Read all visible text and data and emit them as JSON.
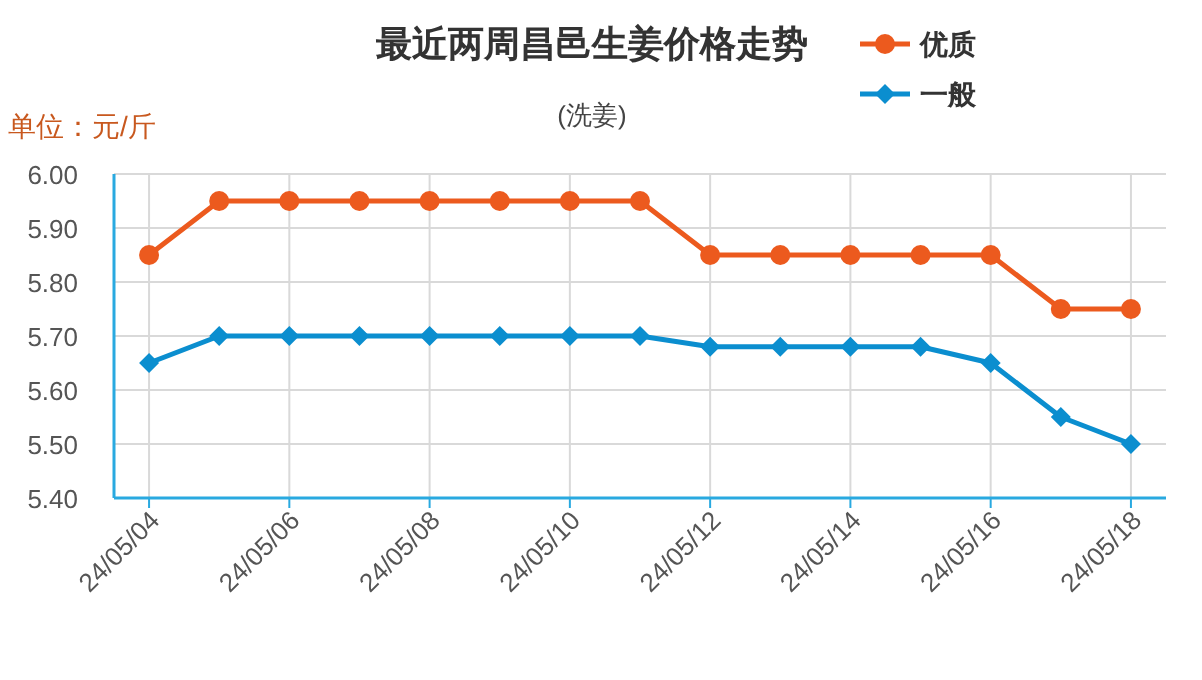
{
  "chart_data": {
    "type": "line",
    "title": "最近两周昌邑生姜价格走势",
    "subtitle": "(洗姜)",
    "ylabel": "单位：元/斤",
    "categories": [
      "24/05/04",
      null,
      "24/05/06",
      null,
      "24/05/08",
      null,
      "24/05/10",
      null,
      "24/05/12",
      null,
      "24/05/14",
      null,
      "24/05/16",
      null,
      "24/05/18"
    ],
    "series": [
      {
        "name": "优质",
        "color": "#ec5a1e",
        "marker": "circle",
        "values": [
          5.85,
          5.95,
          5.95,
          5.95,
          5.95,
          5.95,
          5.95,
          5.95,
          5.85,
          5.85,
          5.85,
          5.85,
          5.85,
          5.75,
          5.75
        ]
      },
      {
        "name": "一般",
        "color": "#0b8ecf",
        "marker": "diamond",
        "values": [
          5.65,
          5.7,
          5.7,
          5.7,
          5.7,
          5.7,
          5.7,
          5.7,
          5.68,
          5.68,
          5.68,
          5.68,
          5.65,
          5.55,
          5.5
        ]
      }
    ],
    "ylim": [
      5.4,
      6.0
    ],
    "yticks": [
      {
        "value": 5.4,
        "label": "5.40"
      },
      {
        "value": 5.5,
        "label": "5.50"
      },
      {
        "value": 5.6,
        "label": "5.60"
      },
      {
        "value": 5.7,
        "label": "5.70"
      },
      {
        "value": 5.8,
        "label": "5.80"
      },
      {
        "value": 5.9,
        "label": "5.90"
      },
      {
        "value": 6.0,
        "label": "6.00"
      }
    ],
    "grid": true,
    "legend": "top right"
  }
}
